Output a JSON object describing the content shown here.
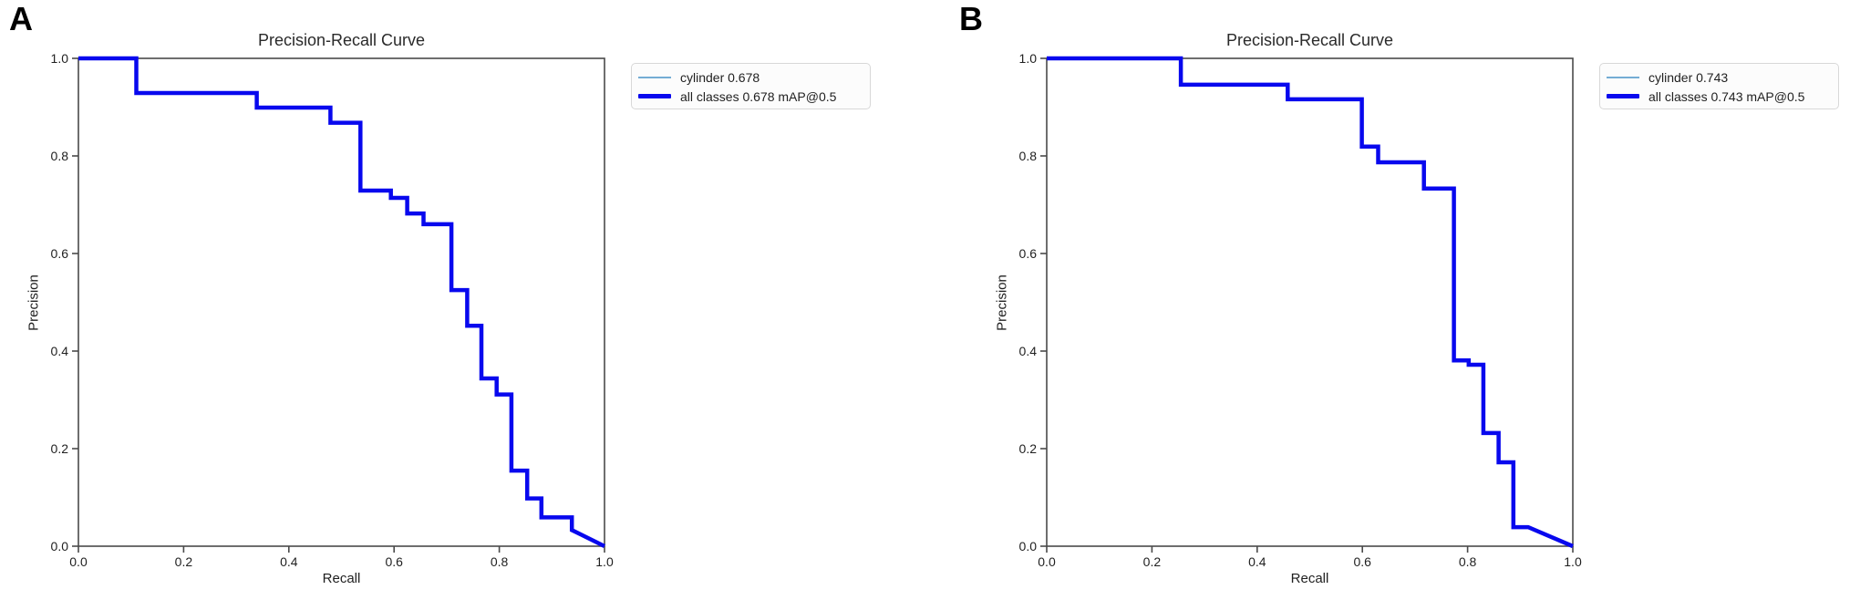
{
  "figure": {
    "background": "#ffffff",
    "spine_color": "#4a4a4a",
    "tick_text_color": "#1f1f1f"
  },
  "chart_data": [
    {
      "panel_label": "A",
      "type": "line",
      "subtype": "step-precision-recall",
      "title": "Precision-Recall Curve",
      "xlabel": "Recall",
      "ylabel": "Precision",
      "xlim": [
        0.0,
        1.0
      ],
      "ylim": [
        0.0,
        1.0
      ],
      "xticks": [
        "0.0",
        "0.2",
        "0.4",
        "0.6",
        "0.8",
        "1.0"
      ],
      "yticks": [
        "0.0",
        "0.2",
        "0.4",
        "0.6",
        "0.8",
        "1.0"
      ],
      "grid": false,
      "legend_position": "outside-upper-right",
      "series": [
        {
          "name": "cylinder",
          "legend_label": "cylinder 0.678",
          "color": "#74add4",
          "linewidth": 2
        },
        {
          "name": "all classes",
          "legend_label": "all classes 0.678 mAP@0.5",
          "color": "#0808ee",
          "linewidth": 4.5
        }
      ],
      "points": [
        [
          0.0,
          1.0
        ],
        [
          0.11,
          1.0
        ],
        [
          0.11,
          0.929
        ],
        [
          0.339,
          0.929
        ],
        [
          0.339,
          0.899
        ],
        [
          0.479,
          0.899
        ],
        [
          0.479,
          0.868
        ],
        [
          0.536,
          0.868
        ],
        [
          0.536,
          0.729
        ],
        [
          0.594,
          0.729
        ],
        [
          0.594,
          0.714
        ],
        [
          0.625,
          0.714
        ],
        [
          0.625,
          0.682
        ],
        [
          0.656,
          0.682
        ],
        [
          0.656,
          0.66
        ],
        [
          0.709,
          0.66
        ],
        [
          0.709,
          0.525
        ],
        [
          0.739,
          0.525
        ],
        [
          0.739,
          0.452
        ],
        [
          0.766,
          0.452
        ],
        [
          0.766,
          0.344
        ],
        [
          0.795,
          0.344
        ],
        [
          0.795,
          0.311
        ],
        [
          0.823,
          0.311
        ],
        [
          0.823,
          0.155
        ],
        [
          0.853,
          0.155
        ],
        [
          0.853,
          0.098
        ],
        [
          0.88,
          0.098
        ],
        [
          0.88,
          0.059
        ],
        [
          0.938,
          0.059
        ],
        [
          0.938,
          0.033
        ],
        [
          1.0,
          0.0
        ]
      ]
    },
    {
      "panel_label": "B",
      "type": "line",
      "subtype": "step-precision-recall",
      "title": "Precision-Recall Curve",
      "xlabel": "Recall",
      "ylabel": "Precision",
      "xlim": [
        0.0,
        1.0
      ],
      "ylim": [
        0.0,
        1.0
      ],
      "xticks": [
        "0.0",
        "0.2",
        "0.4",
        "0.6",
        "0.8",
        "1.0"
      ],
      "yticks": [
        "0.0",
        "0.2",
        "0.4",
        "0.6",
        "0.8",
        "1.0"
      ],
      "grid": false,
      "legend_position": "outside-upper-right",
      "series": [
        {
          "name": "cylinder",
          "legend_label": "cylinder 0.743",
          "color": "#74add4",
          "linewidth": 2
        },
        {
          "name": "all classes",
          "legend_label": "all classes 0.743 mAP@0.5",
          "color": "#0808ee",
          "linewidth": 4.5
        }
      ],
      "points": [
        [
          0.0,
          1.0
        ],
        [
          0.255,
          1.0
        ],
        [
          0.255,
          0.946
        ],
        [
          0.458,
          0.946
        ],
        [
          0.458,
          0.916
        ],
        [
          0.599,
          0.916
        ],
        [
          0.599,
          0.819
        ],
        [
          0.63,
          0.819
        ],
        [
          0.63,
          0.787
        ],
        [
          0.717,
          0.787
        ],
        [
          0.717,
          0.733
        ],
        [
          0.774,
          0.733
        ],
        [
          0.774,
          0.381
        ],
        [
          0.802,
          0.381
        ],
        [
          0.802,
          0.372
        ],
        [
          0.83,
          0.372
        ],
        [
          0.83,
          0.232
        ],
        [
          0.859,
          0.232
        ],
        [
          0.859,
          0.172
        ],
        [
          0.887,
          0.172
        ],
        [
          0.887,
          0.039
        ],
        [
          0.915,
          0.039
        ],
        [
          1.0,
          0.0
        ]
      ]
    }
  ]
}
